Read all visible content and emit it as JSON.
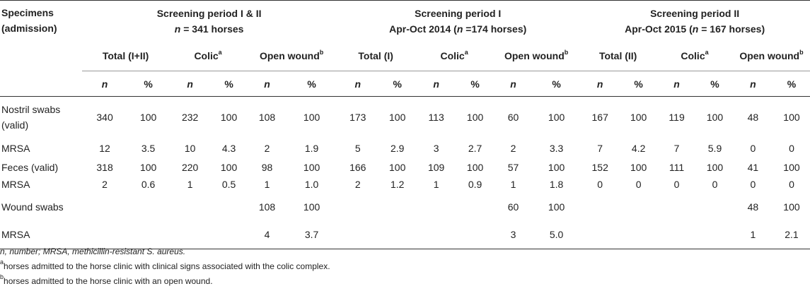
{
  "table": {
    "specimens_header_line1": "Specimens",
    "specimens_header_line2": "(admission)",
    "groups": [
      {
        "title": "Screening period I & II",
        "sub_prefix": "n",
        "sub_text": " = 341 horses"
      },
      {
        "title": "Screening period I",
        "sub_pre": "Apr-Oct 2014 (",
        "sub_prefix": "n",
        "sub_text": " =174 horses)"
      },
      {
        "title": "Screening period II",
        "sub_pre": "Apr-Oct 2015 (",
        "sub_prefix": "n",
        "sub_text": " = 167 horses)"
      }
    ],
    "subgroups": {
      "total_all": "Total (I+II)",
      "total_1": "Total (I)",
      "total_2": "Total (II)",
      "colic": "Colic",
      "colic_sup": "a",
      "wound": "Open wound",
      "wound_sup": "b"
    },
    "col_n": "n",
    "col_pct": "%",
    "rows": [
      {
        "label": "Nostril swabs (valid)",
        "cells": [
          "340",
          "100",
          "232",
          "100",
          "108",
          "100",
          "173",
          "100",
          "113",
          "100",
          "60",
          "100",
          "167",
          "100",
          "119",
          "100",
          "48",
          "100"
        ]
      },
      {
        "label": "MRSA",
        "cells": [
          "12",
          "3.5",
          "10",
          "4.3",
          "2",
          "1.9",
          "5",
          "2.9",
          "3",
          "2.7",
          "2",
          "3.3",
          "7",
          "4.2",
          "7",
          "5.9",
          "0",
          "0"
        ]
      },
      {
        "label": "Feces (valid)",
        "cells": [
          "318",
          "100",
          "220",
          "100",
          "98",
          "100",
          "166",
          "100",
          "109",
          "100",
          "57",
          "100",
          "152",
          "100",
          "111",
          "100",
          "41",
          "100"
        ]
      },
      {
        "label": "MRSA",
        "cells": [
          "2",
          "0.6",
          "1",
          "0.5",
          "1",
          "1.0",
          "2",
          "1.2",
          "1",
          "0.9",
          "1",
          "1.8",
          "0",
          "0",
          "0",
          "0",
          "0",
          "0"
        ]
      },
      {
        "label": "Wound swabs",
        "cells": [
          "",
          "",
          "",
          "",
          "108",
          "100",
          "",
          "",
          "",
          "",
          "60",
          "100",
          "",
          "",
          "",
          "",
          "48",
          "100"
        ]
      },
      {
        "label": "MRSA",
        "cells": [
          "",
          "",
          "",
          "",
          "4",
          "3.7",
          "",
          "",
          "",
          "",
          "3",
          "5.0",
          "",
          "",
          "",
          "",
          "1",
          "2.1"
        ]
      }
    ]
  },
  "footnotes": {
    "line1": "n, number; MRSA, methicillin-resistant S. aureus.",
    "line2_sup": "a",
    "line2": "horses admitted to the horse clinic with clinical signs associated with the colic complex.",
    "line3_sup": "b",
    "line3": "horses admitted to the horse clinic with an open wound."
  }
}
